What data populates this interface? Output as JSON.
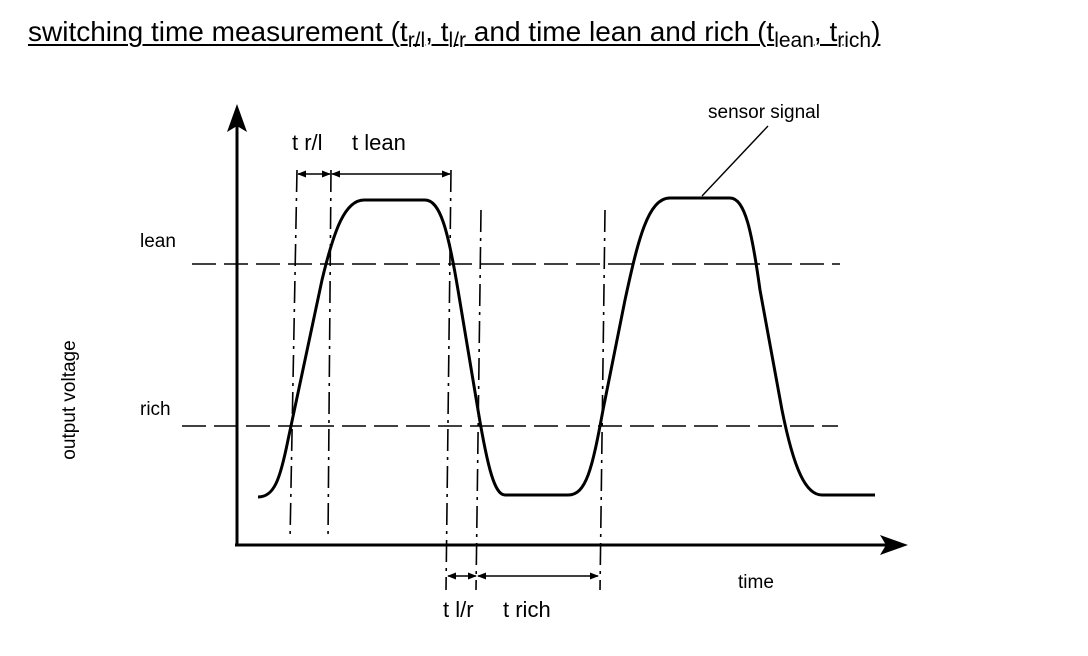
{
  "title": {
    "text1": "switching time measurement (t",
    "sub1": "r/l",
    "text2": ", t",
    "sub2": "l/r",
    "text3": " and time lean and rich (t",
    "sub3": "lean",
    "text4": ", t",
    "sub4": "rich",
    "text5": ")"
  },
  "diagram": {
    "y_axis_label": "output voltage",
    "x_axis_label": "time",
    "levels": {
      "lean": "lean",
      "rich": "rich"
    },
    "annotations": {
      "t_rl": "t r/l",
      "t_lean": "t lean",
      "t_lr": "t l/r",
      "t_rich": "t rich",
      "sensor_signal": "sensor signal"
    },
    "line_color": "#000000"
  }
}
